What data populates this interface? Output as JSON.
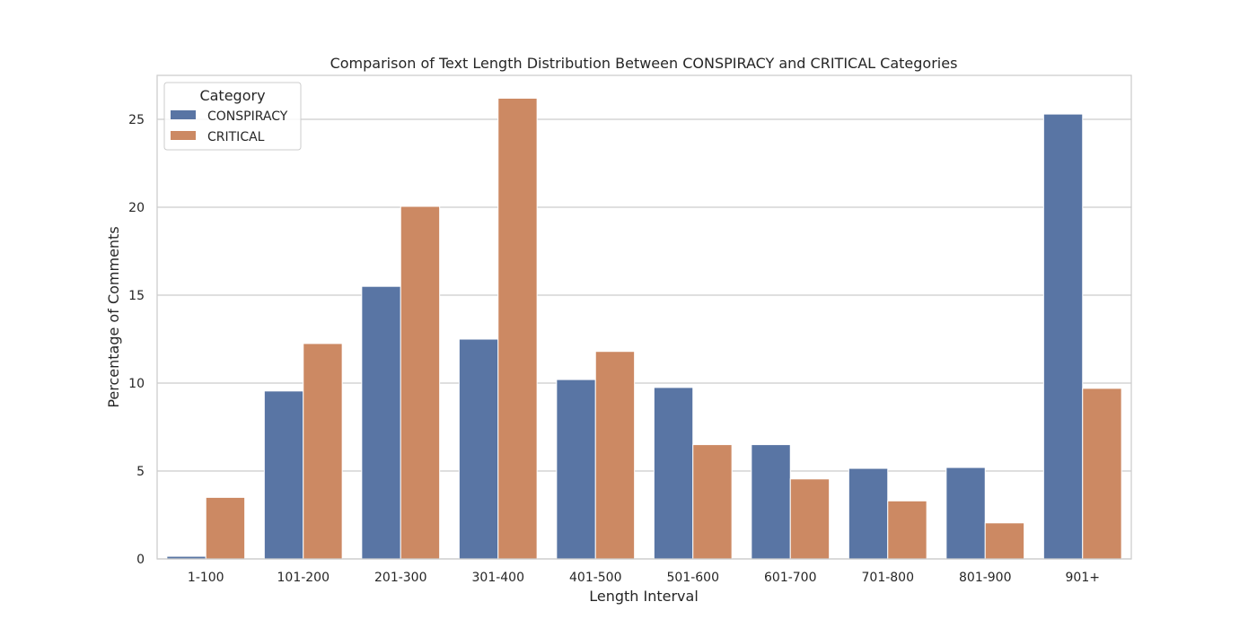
{
  "chart_data": {
    "type": "bar",
    "title": "Comparison of Text Length Distribution Between CONSPIRACY and CRITICAL Categories",
    "xlabel": "Length Interval",
    "ylabel": "Percentage of Comments",
    "categories": [
      "1-100",
      "101-200",
      "201-300",
      "301-400",
      "401-500",
      "501-600",
      "601-700",
      "701-800",
      "801-900",
      "901+"
    ],
    "series": [
      {
        "name": "CONSPIRACY",
        "color": "#5975a4",
        "values": [
          0.15,
          9.55,
          15.5,
          12.5,
          10.2,
          9.75,
          6.5,
          5.15,
          5.2,
          25.3
        ]
      },
      {
        "name": "CRITICAL",
        "color": "#cc8963",
        "values": [
          3.5,
          12.25,
          20.05,
          26.2,
          11.8,
          6.5,
          4.55,
          3.3,
          2.05,
          9.7
        ]
      }
    ],
    "ylim": [
      0,
      27.5
    ],
    "yticks": [
      0,
      5,
      10,
      15,
      20,
      25
    ],
    "grid": true,
    "legend": {
      "title": "Category",
      "placement": "top-left"
    }
  }
}
